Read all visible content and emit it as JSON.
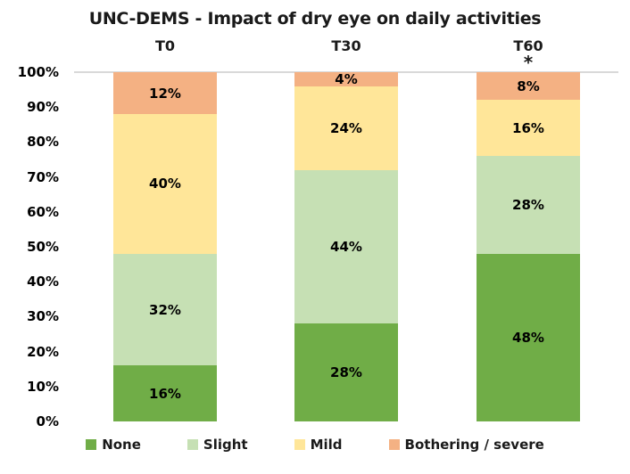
{
  "chart_data": {
    "type": "bar",
    "stacked": true,
    "title": "UNC-DEMS - Impact of dry eye on daily activities",
    "categories": [
      "T0",
      "T30",
      "T60"
    ],
    "category_annotations": [
      "",
      "",
      "*"
    ],
    "series": [
      {
        "name": "None",
        "color": "#70AD47",
        "values": [
          16,
          28,
          48
        ]
      },
      {
        "name": "Slight",
        "color": "#C6E0B4",
        "values": [
          32,
          44,
          28
        ]
      },
      {
        "name": "Mild",
        "color": "#FFE699",
        "values": [
          40,
          24,
          16
        ]
      },
      {
        "name": "Bothering / severe",
        "color": "#F4B183",
        "values": [
          12,
          4,
          8
        ]
      }
    ],
    "data_labels": {
      "T0": [
        "16%",
        "32%",
        "40%",
        "12%"
      ],
      "T30": [
        "28%",
        "44%",
        "24%",
        "4%"
      ],
      "T60": [
        "48%",
        "28%",
        "16%",
        "8%"
      ]
    },
    "value_suffix": "%",
    "y_axis": {
      "min": 0,
      "max": 100,
      "tick_step": 10,
      "ticks": [
        "0%",
        "10%",
        "20%",
        "30%",
        "40%",
        "50%",
        "60%",
        "70%",
        "80%",
        "90%",
        "100%"
      ]
    },
    "gridlines": {
      "shown_at": [
        100
      ],
      "color": "#D9D9D9"
    },
    "legend_position": "bottom",
    "text_color": "#000000"
  }
}
